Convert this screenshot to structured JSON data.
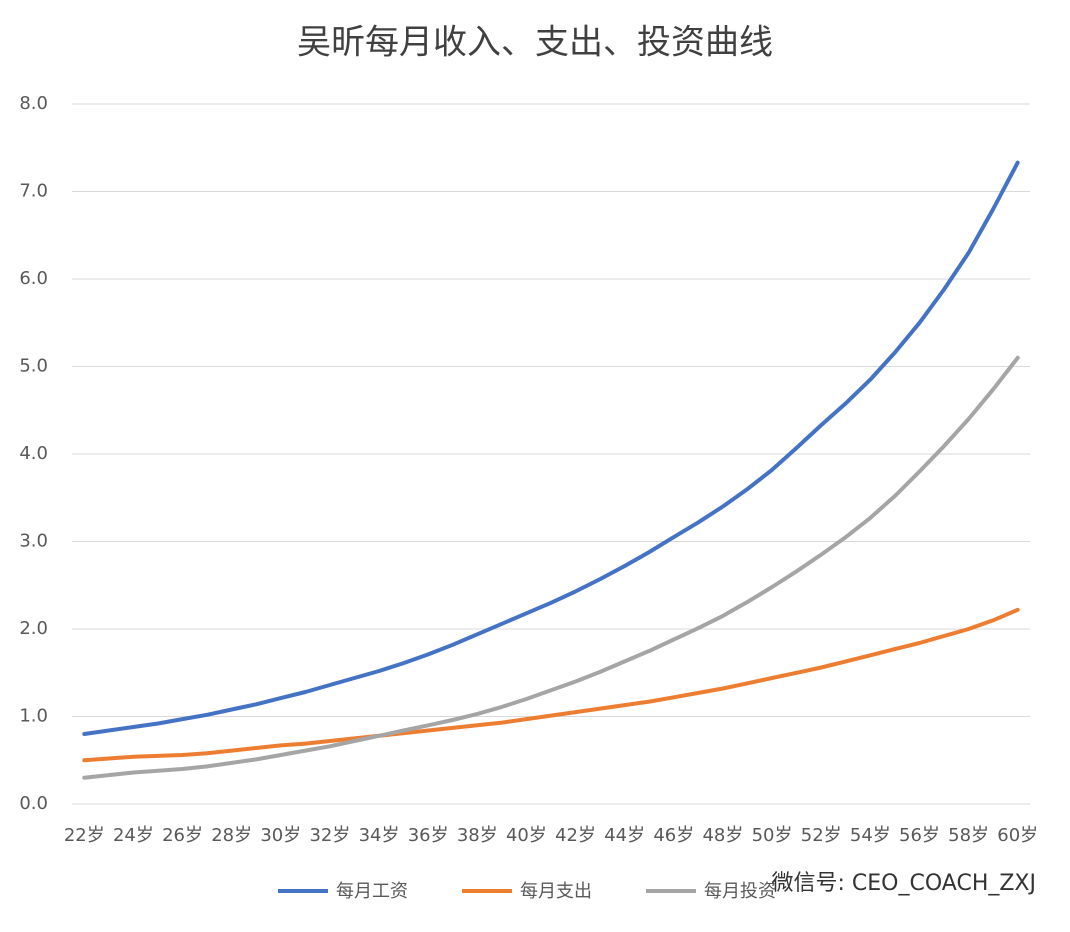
{
  "chart_data": {
    "type": "line",
    "title": "吴昕每月收入、支出、投资曲线",
    "categories": [
      "22岁",
      null,
      "24岁",
      null,
      "26岁",
      null,
      "28岁",
      null,
      "30岁",
      null,
      "32岁",
      null,
      "34岁",
      null,
      "36岁",
      null,
      "38岁",
      null,
      "40岁",
      null,
      "42岁",
      null,
      "44岁",
      null,
      "46岁",
      null,
      "48岁",
      null,
      "50岁",
      null,
      "52岁",
      null,
      "54岁",
      null,
      "56岁",
      null,
      "58岁",
      null,
      "60岁"
    ],
    "series": [
      {
        "name": "每月工资",
        "color": "#4472c4",
        "values": [
          0.8,
          0.84,
          0.88,
          0.92,
          0.97,
          1.02,
          1.08,
          1.14,
          1.21,
          1.28,
          1.36,
          1.44,
          1.52,
          1.61,
          1.71,
          1.82,
          1.94,
          2.06,
          2.18,
          2.3,
          2.43,
          2.57,
          2.72,
          2.88,
          3.05,
          3.22,
          3.4,
          3.6,
          3.82,
          4.07,
          4.33,
          4.58,
          4.85,
          5.16,
          5.5,
          5.88,
          6.3,
          6.8,
          7.33
        ]
      },
      {
        "name": "每月支出",
        "color": "#ed7d31",
        "values": [
          0.5,
          0.52,
          0.54,
          0.55,
          0.56,
          0.58,
          0.61,
          0.64,
          0.67,
          0.69,
          0.72,
          0.75,
          0.78,
          0.81,
          0.84,
          0.87,
          0.9,
          0.93,
          0.97,
          1.01,
          1.05,
          1.09,
          1.13,
          1.17,
          1.22,
          1.27,
          1.32,
          1.38,
          1.44,
          1.5,
          1.56,
          1.63,
          1.7,
          1.77,
          1.84,
          1.92,
          2.0,
          2.1,
          2.22
        ]
      },
      {
        "name": "每月投资",
        "color": "#a5a5a5",
        "values": [
          0.3,
          0.33,
          0.36,
          0.38,
          0.4,
          0.43,
          0.47,
          0.51,
          0.56,
          0.61,
          0.66,
          0.72,
          0.78,
          0.84,
          0.9,
          0.96,
          1.03,
          1.11,
          1.2,
          1.3,
          1.4,
          1.51,
          1.63,
          1.75,
          1.88,
          2.01,
          2.15,
          2.31,
          2.48,
          2.66,
          2.85,
          3.05,
          3.27,
          3.52,
          3.8,
          4.09,
          4.4,
          4.74,
          5.1
        ]
      }
    ],
    "ylim": [
      0,
      8
    ],
    "yticks": [
      {
        "value": 0,
        "label": "0.0"
      },
      {
        "value": 1,
        "label": "1.0"
      },
      {
        "value": 2,
        "label": "2.0"
      },
      {
        "value": 3,
        "label": "3.0"
      },
      {
        "value": 4,
        "label": "4.0"
      },
      {
        "value": 5,
        "label": "5.0"
      },
      {
        "value": 6,
        "label": "6.0"
      },
      {
        "value": 7,
        "label": "7.0"
      },
      {
        "value": 8,
        "label": "8.0"
      }
    ],
    "grid": true,
    "legend": "bottom",
    "watermark": "微信号: CEO_COACH_ZXJ"
  }
}
